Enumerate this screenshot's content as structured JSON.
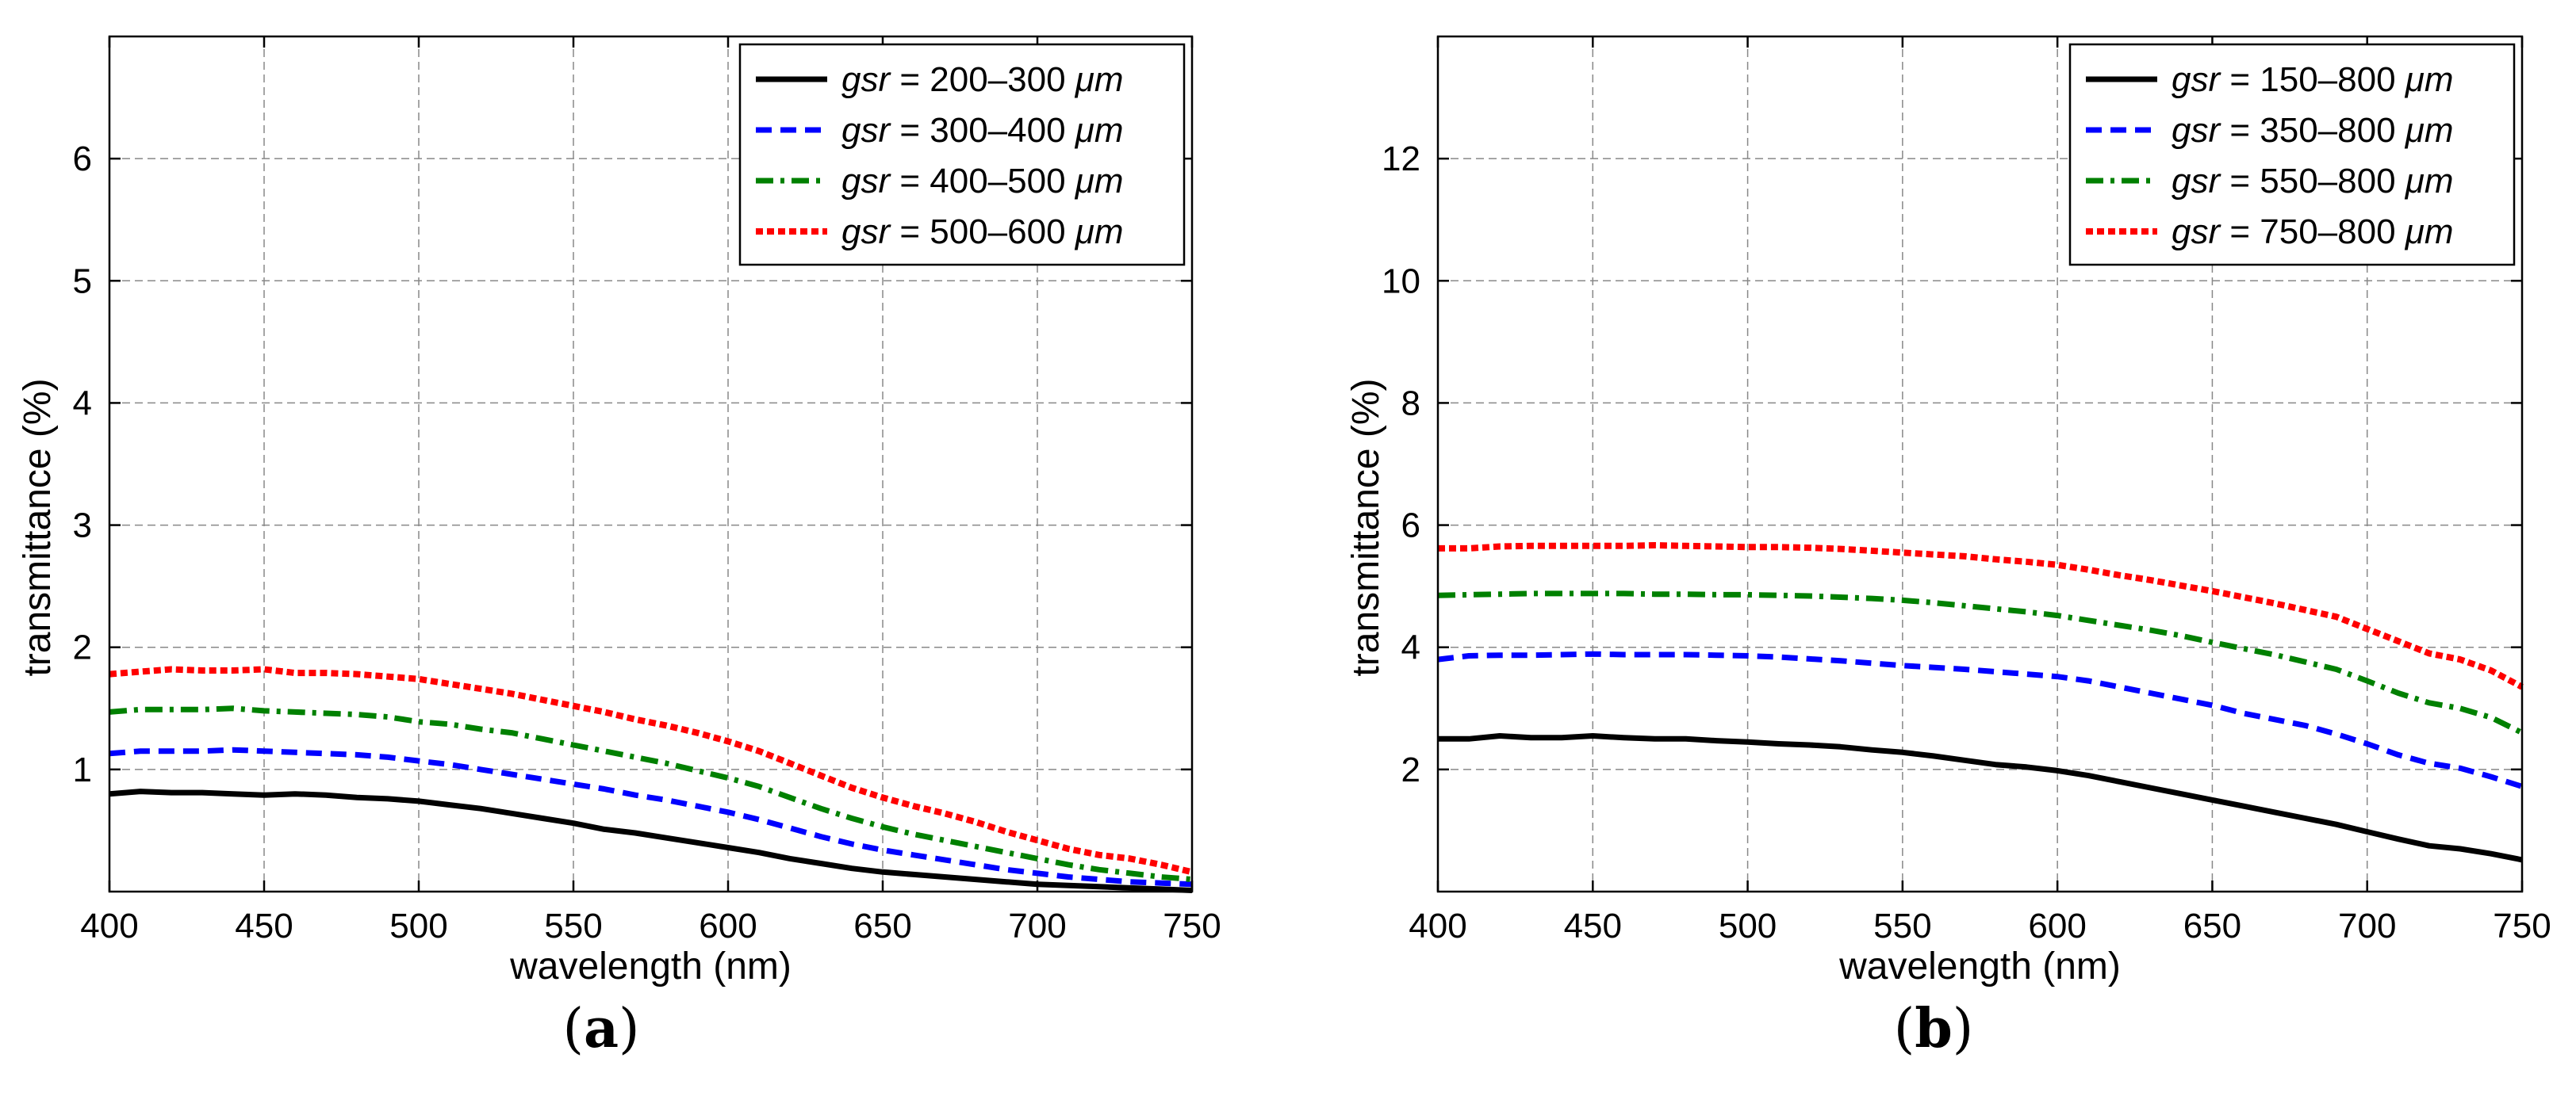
{
  "panels": [
    {
      "label": "(",
      "letter": "a",
      "close": ")"
    },
    {
      "label": "(",
      "letter": "b",
      "close": ")"
    }
  ],
  "chart_data": [
    {
      "type": "line",
      "panel": "a",
      "xlabel": "wavelength (nm)",
      "ylabel": "transmittance (%)",
      "xlim": [
        400,
        750
      ],
      "ylim": [
        0,
        7
      ],
      "xticks": [
        400,
        450,
        500,
        550,
        600,
        650,
        700,
        750
      ],
      "yticks": [
        1,
        2,
        3,
        4,
        5,
        6
      ],
      "grid": true,
      "legend_position": "top-right",
      "x": [
        400,
        410,
        420,
        430,
        440,
        450,
        460,
        470,
        480,
        490,
        500,
        510,
        520,
        530,
        540,
        550,
        560,
        570,
        580,
        590,
        600,
        610,
        620,
        630,
        640,
        650,
        660,
        670,
        680,
        690,
        700,
        710,
        720,
        730,
        740,
        750
      ],
      "series": [
        {
          "name": "gsr = 200–300 μm",
          "prefix": "gsr",
          "range": " = 200–300 ",
          "unit": "μm",
          "color": "#000000",
          "style": "solid",
          "values": [
            0.8,
            0.82,
            0.81,
            0.81,
            0.8,
            0.79,
            0.8,
            0.79,
            0.77,
            0.76,
            0.74,
            0.71,
            0.68,
            0.64,
            0.6,
            0.56,
            0.51,
            0.48,
            0.44,
            0.4,
            0.36,
            0.32,
            0.27,
            0.23,
            0.19,
            0.16,
            0.14,
            0.12,
            0.1,
            0.08,
            0.06,
            0.05,
            0.04,
            0.03,
            0.02,
            0.01
          ]
        },
        {
          "name": "gsr = 300–400 μm",
          "prefix": "gsr",
          "range": " = 300–400 ",
          "unit": "μm",
          "color": "#0000ff",
          "style": "dashed",
          "values": [
            1.13,
            1.15,
            1.15,
            1.15,
            1.16,
            1.15,
            1.14,
            1.13,
            1.12,
            1.1,
            1.07,
            1.04,
            1.0,
            0.96,
            0.92,
            0.88,
            0.84,
            0.79,
            0.75,
            0.7,
            0.65,
            0.59,
            0.52,
            0.45,
            0.39,
            0.34,
            0.3,
            0.26,
            0.22,
            0.18,
            0.15,
            0.12,
            0.1,
            0.08,
            0.07,
            0.06
          ]
        },
        {
          "name": "gsr = 400–500 μm",
          "prefix": "gsr",
          "range": " = 400–500 ",
          "unit": "μm",
          "color": "#008000",
          "style": "dashdot",
          "values": [
            1.47,
            1.49,
            1.49,
            1.49,
            1.5,
            1.48,
            1.47,
            1.46,
            1.45,
            1.43,
            1.39,
            1.37,
            1.33,
            1.3,
            1.25,
            1.2,
            1.15,
            1.1,
            1.05,
            0.99,
            0.93,
            0.86,
            0.77,
            0.68,
            0.6,
            0.53,
            0.47,
            0.42,
            0.37,
            0.32,
            0.27,
            0.22,
            0.18,
            0.15,
            0.12,
            0.1
          ]
        },
        {
          "name": "gsr = 500–600 μm",
          "prefix": "gsr",
          "range": " = 500–600 ",
          "unit": "μm",
          "color": "#ff0000",
          "style": "dotted",
          "values": [
            1.78,
            1.8,
            1.82,
            1.81,
            1.81,
            1.82,
            1.79,
            1.79,
            1.78,
            1.76,
            1.74,
            1.7,
            1.66,
            1.62,
            1.57,
            1.52,
            1.47,
            1.41,
            1.36,
            1.3,
            1.23,
            1.15,
            1.05,
            0.95,
            0.85,
            0.77,
            0.7,
            0.64,
            0.57,
            0.49,
            0.42,
            0.35,
            0.3,
            0.27,
            0.22,
            0.16
          ]
        }
      ]
    },
    {
      "type": "line",
      "panel": "b",
      "xlabel": "wavelength (nm)",
      "ylabel": "transmittance (%)",
      "xlim": [
        400,
        750
      ],
      "ylim": [
        0,
        14
      ],
      "xticks": [
        400,
        450,
        500,
        550,
        600,
        650,
        700,
        750
      ],
      "yticks": [
        2,
        4,
        6,
        8,
        10,
        12
      ],
      "grid": true,
      "legend_position": "top-right",
      "x": [
        400,
        410,
        420,
        430,
        440,
        450,
        460,
        470,
        480,
        490,
        500,
        510,
        520,
        530,
        540,
        550,
        560,
        570,
        580,
        590,
        600,
        610,
        620,
        630,
        640,
        650,
        660,
        670,
        680,
        690,
        700,
        710,
        720,
        730,
        740,
        750
      ],
      "series": [
        {
          "name": "gsr = 150–800 μm",
          "prefix": "gsr",
          "range": " = 150–800 ",
          "unit": "μm",
          "color": "#000000",
          "style": "solid",
          "values": [
            2.5,
            2.5,
            2.55,
            2.52,
            2.52,
            2.55,
            2.52,
            2.5,
            2.5,
            2.47,
            2.45,
            2.42,
            2.4,
            2.37,
            2.32,
            2.28,
            2.22,
            2.15,
            2.08,
            2.04,
            1.98,
            1.9,
            1.8,
            1.7,
            1.6,
            1.5,
            1.4,
            1.3,
            1.2,
            1.1,
            0.98,
            0.86,
            0.75,
            0.7,
            0.62,
            0.52
          ]
        },
        {
          "name": "gsr = 350–800 μm",
          "prefix": "gsr",
          "range": " = 350–800 ",
          "unit": "μm",
          "color": "#0000ff",
          "style": "dashed",
          "values": [
            3.8,
            3.86,
            3.87,
            3.87,
            3.88,
            3.89,
            3.88,
            3.88,
            3.88,
            3.87,
            3.86,
            3.84,
            3.81,
            3.78,
            3.74,
            3.7,
            3.67,
            3.64,
            3.6,
            3.56,
            3.52,
            3.45,
            3.35,
            3.25,
            3.15,
            3.05,
            2.92,
            2.82,
            2.72,
            2.58,
            2.42,
            2.24,
            2.1,
            2.02,
            1.88,
            1.72
          ]
        },
        {
          "name": "gsr = 550–800 μm",
          "prefix": "gsr",
          "range": " = 550–800 ",
          "unit": "μm",
          "color": "#008000",
          "style": "dashdot",
          "values": [
            4.85,
            4.86,
            4.87,
            4.88,
            4.88,
            4.88,
            4.88,
            4.87,
            4.87,
            4.86,
            4.86,
            4.85,
            4.84,
            4.82,
            4.8,
            4.77,
            4.73,
            4.68,
            4.63,
            4.58,
            4.52,
            4.44,
            4.36,
            4.28,
            4.19,
            4.08,
            3.98,
            3.88,
            3.76,
            3.64,
            3.45,
            3.25,
            3.09,
            3.0,
            2.85,
            2.6
          ]
        },
        {
          "name": "gsr = 750–800 μm",
          "prefix": "gsr",
          "range": " = 750–800 ",
          "unit": "μm",
          "color": "#ff0000",
          "style": "dotted",
          "values": [
            5.62,
            5.62,
            5.65,
            5.66,
            5.66,
            5.66,
            5.66,
            5.67,
            5.66,
            5.65,
            5.64,
            5.64,
            5.63,
            5.61,
            5.58,
            5.55,
            5.52,
            5.49,
            5.44,
            5.4,
            5.35,
            5.27,
            5.18,
            5.1,
            5.01,
            4.92,
            4.82,
            4.72,
            4.61,
            4.5,
            4.3,
            4.1,
            3.9,
            3.8,
            3.62,
            3.35
          ]
        }
      ]
    }
  ]
}
